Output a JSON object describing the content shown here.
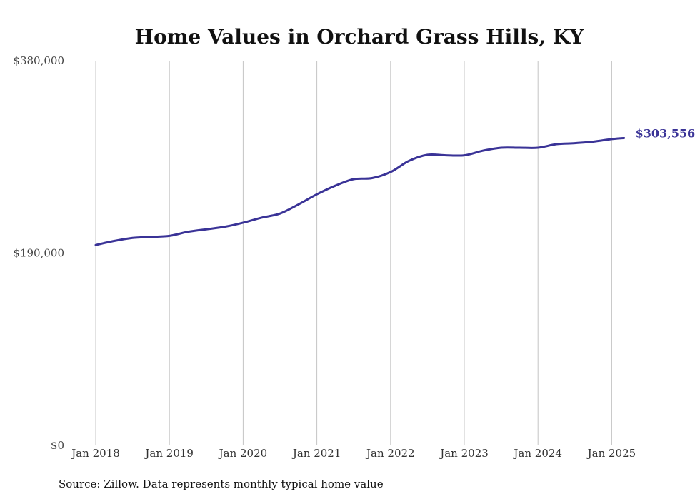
{
  "chart_data": {
    "type": "line",
    "title": "Home Values in Orchard Grass Hills, KY",
    "xlabel": "",
    "ylabel": "",
    "ylim": [
      0,
      380000
    ],
    "y_ticks": [
      0,
      190000,
      380000
    ],
    "y_tick_labels": [
      "$0",
      "$190,000",
      "$380,000"
    ],
    "x_ticks": [
      "2018-01",
      "2019-01",
      "2020-01",
      "2021-01",
      "2022-01",
      "2023-01",
      "2024-01",
      "2025-01"
    ],
    "x_tick_labels": [
      "Jan 2018",
      "Jan 2019",
      "Jan 2020",
      "Jan 2021",
      "Jan 2022",
      "Jan 2023",
      "Jan 2024",
      "Jan 2025"
    ],
    "grid": "vertical",
    "line_color": "#3a3397",
    "series": [
      {
        "x": [
          "2018-01",
          "2018-04",
          "2018-07",
          "2018-10",
          "2019-01",
          "2019-04",
          "2019-07",
          "2019-10",
          "2020-01",
          "2020-04",
          "2020-07",
          "2020-10",
          "2021-01",
          "2021-04",
          "2021-07",
          "2021-10",
          "2022-01",
          "2022-04",
          "2022-07",
          "2022-10",
          "2023-01",
          "2023-04",
          "2023-07",
          "2023-10",
          "2024-01",
          "2024-04",
          "2024-07",
          "2024-10",
          "2025-01",
          "2025-03"
        ],
        "values": [
          198000,
          202000,
          205000,
          206000,
          207000,
          211000,
          213500,
          216000,
          220000,
          225000,
          229000,
          238000,
          248000,
          256500,
          263000,
          264000,
          270000,
          281000,
          287000,
          286500,
          286500,
          291000,
          294000,
          294000,
          294000,
          297500,
          298500,
          300000,
          302500,
          303556
        ]
      }
    ],
    "end_label": "$303,556",
    "source": "Source: Zillow. Data represents monthly typical home value"
  }
}
